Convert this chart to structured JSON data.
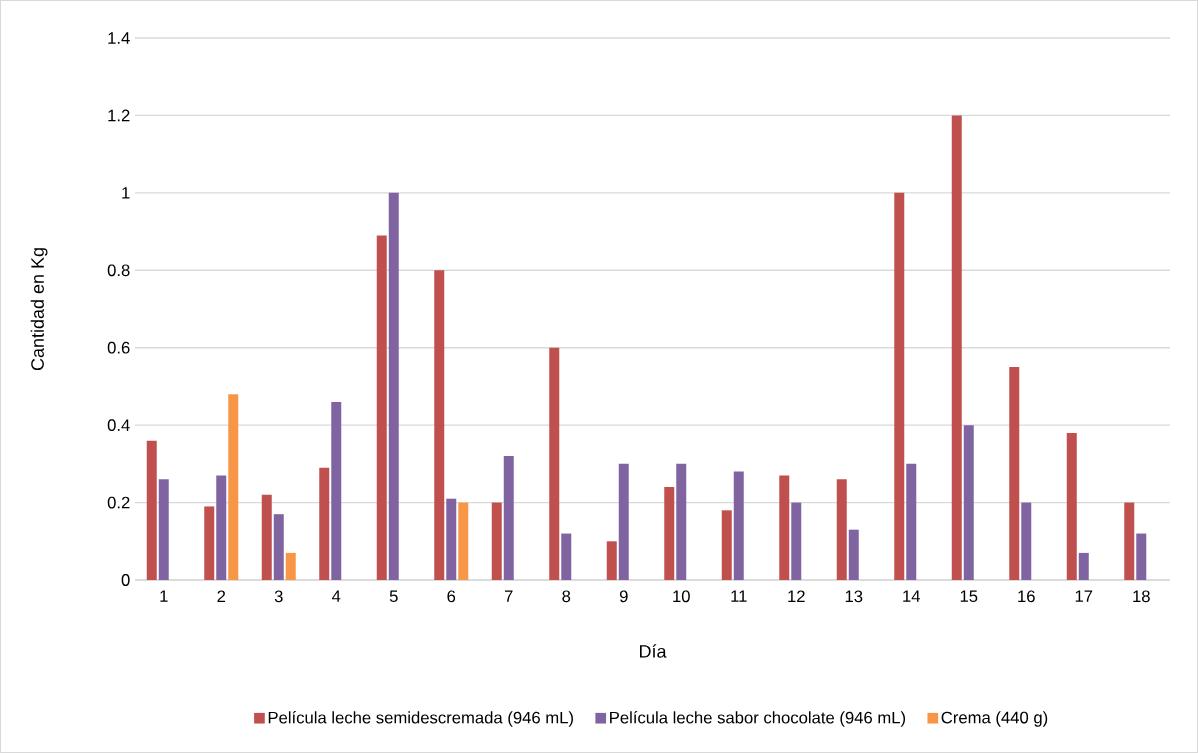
{
  "chart_data": {
    "type": "bar",
    "xlabel": "Día",
    "ylabel": "Cantidad en Kg",
    "categories": [
      "1",
      "2",
      "3",
      "4",
      "5",
      "6",
      "7",
      "8",
      "9",
      "10",
      "11",
      "12",
      "13",
      "14",
      "15",
      "16",
      "17",
      "18"
    ],
    "series": [
      {
        "name": "Película leche semidescremada (946 mL)",
        "color": "#c0504d",
        "values": [
          0.36,
          0.19,
          0.22,
          0.29,
          0.89,
          0.8,
          0.2,
          0.6,
          0.1,
          0.24,
          0.18,
          0.27,
          0.26,
          1.0,
          1.2,
          0.55,
          0.38,
          0.2
        ]
      },
      {
        "name": "Película leche sabor chocolate (946 mL)",
        "color": "#8064a2",
        "values": [
          0.26,
          0.27,
          0.17,
          0.46,
          1.0,
          0.21,
          0.32,
          0.12,
          0.3,
          0.3,
          0.28,
          0.2,
          0.13,
          0.3,
          0.4,
          0.2,
          0.07,
          0.12
        ]
      },
      {
        "name": "Crema  (440 g)",
        "color": "#f79646",
        "values": [
          null,
          0.48,
          0.07,
          null,
          null,
          0.2,
          null,
          null,
          null,
          null,
          null,
          null,
          null,
          null,
          null,
          null,
          null,
          null
        ]
      }
    ],
    "ylim": [
      0,
      1.4
    ],
    "yticks": [
      0,
      0.2,
      0.4,
      0.6,
      0.8,
      1,
      1.2,
      1.4
    ],
    "grid": "y",
    "legend": "bottom"
  }
}
